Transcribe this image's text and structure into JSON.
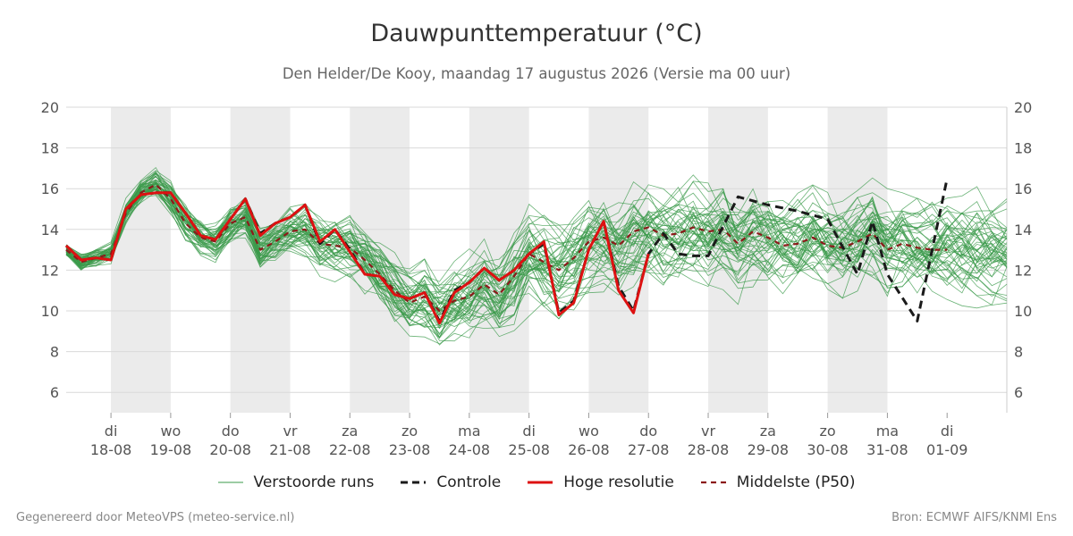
{
  "chart_data": {
    "type": "line",
    "title": "Dauwpunttemperatuur (°C)",
    "subtitle": "Den Helder/De Kooy, maandag 17 augustus 2026 (Versie ma 00 uur)",
    "ylim": [
      5,
      20
    ],
    "yticks": [
      6,
      8,
      10,
      12,
      14,
      16,
      18,
      20
    ],
    "xlim": [
      -0.75,
      15
    ],
    "day_ticks": [
      {
        "x": 0,
        "day": "di",
        "date": "18-08"
      },
      {
        "x": 1,
        "day": "wo",
        "date": "19-08"
      },
      {
        "x": 2,
        "day": "do",
        "date": "20-08"
      },
      {
        "x": 3,
        "day": "vr",
        "date": "21-08"
      },
      {
        "x": 4,
        "day": "za",
        "date": "22-08"
      },
      {
        "x": 5,
        "day": "zo",
        "date": "23-08"
      },
      {
        "x": 6,
        "day": "ma",
        "date": "24-08"
      },
      {
        "x": 7,
        "day": "di",
        "date": "25-08"
      },
      {
        "x": 8,
        "day": "wo",
        "date": "26-08"
      },
      {
        "x": 9,
        "day": "do",
        "date": "27-08"
      },
      {
        "x": 10,
        "day": "vr",
        "date": "28-08"
      },
      {
        "x": 11,
        "day": "za",
        "date": "29-08"
      },
      {
        "x": 12,
        "day": "zo",
        "date": "30-08"
      },
      {
        "x": 13,
        "day": "ma",
        "date": "31-08"
      },
      {
        "x": 14,
        "day": "di",
        "date": "01-09"
      }
    ],
    "shaded_days": [
      0,
      2,
      4,
      6,
      8,
      10,
      12
    ],
    "grid": true,
    "legend_position": "bottom",
    "series": [
      {
        "name": "Controle",
        "color": "#1a1a1a",
        "style": "dashed",
        "x": [
          -0.75,
          -0.5,
          -0.25,
          0,
          0.25,
          0.5,
          0.75,
          1,
          1.25,
          1.5,
          1.75,
          2,
          2.25,
          2.5,
          2.75,
          3,
          3.25,
          3.5,
          3.75,
          4,
          4.25,
          4.5,
          4.75,
          5,
          5.25,
          5.5,
          5.75,
          6,
          6.25,
          6.5,
          6.75,
          7,
          7.25,
          7.5,
          7.75,
          8,
          8.25,
          8.5,
          8.75,
          9,
          9.25,
          9.5,
          9.75,
          10,
          10.5,
          11,
          11.5,
          12,
          12.5,
          12.75,
          13,
          13.5,
          14
        ],
        "y": [
          13.2,
          12.5,
          12.6,
          12.5,
          15.0,
          15.7,
          15.8,
          15.8,
          14.8,
          13.7,
          13.5,
          14.5,
          15.5,
          13.8,
          14.3,
          14.6,
          15.2,
          13.3,
          14.0,
          13.0,
          11.8,
          11.7,
          10.8,
          10.6,
          10.9,
          9.5,
          11.0,
          11.4,
          12.1,
          11.5,
          12.0,
          12.8,
          13.3,
          9.9,
          10.5,
          13.0,
          14.4,
          11.2,
          10.0,
          12.8,
          13.8,
          12.8,
          12.7,
          12.7,
          15.6,
          15.2,
          14.9,
          14.5,
          11.8,
          14.4,
          11.8,
          9.5,
          16.5
        ]
      },
      {
        "name": "Hoge resolutie",
        "color": "#dd1111",
        "style": "solid",
        "x": [
          -0.75,
          -0.5,
          -0.25,
          0,
          0.25,
          0.5,
          0.75,
          1,
          1.25,
          1.5,
          1.75,
          2,
          2.25,
          2.5,
          2.75,
          3,
          3.25,
          3.5,
          3.75,
          4,
          4.25,
          4.5,
          4.75,
          5,
          5.25,
          5.5,
          5.75,
          6,
          6.25,
          6.5,
          6.75,
          7,
          7.25,
          7.5,
          7.75,
          8,
          8.25,
          8.5,
          8.75,
          9
        ],
        "y": [
          13.2,
          12.5,
          12.6,
          12.5,
          15.0,
          15.7,
          15.8,
          15.8,
          14.8,
          13.7,
          13.5,
          14.5,
          15.5,
          13.7,
          14.3,
          14.6,
          15.2,
          13.4,
          14.0,
          12.9,
          11.8,
          11.7,
          10.8,
          10.6,
          10.9,
          9.4,
          10.9,
          11.4,
          12.1,
          11.5,
          12.0,
          12.8,
          13.4,
          9.8,
          10.4,
          13.0,
          14.4,
          11.0,
          9.9,
          12.8
        ]
      },
      {
        "name": "Middelste (P50)",
        "color": "#8b1a1a",
        "style": "dashed",
        "x": [
          -0.75,
          -0.5,
          -0.25,
          0,
          0.25,
          0.5,
          0.75,
          1,
          1.25,
          1.5,
          1.75,
          2,
          2.25,
          2.5,
          2.75,
          3,
          3.25,
          3.5,
          3.75,
          4,
          4.25,
          4.5,
          4.75,
          5,
          5.25,
          5.5,
          5.75,
          6,
          6.25,
          6.5,
          6.75,
          7,
          7.25,
          7.5,
          7.75,
          8,
          8.25,
          8.5,
          8.75,
          9,
          9.25,
          9.5,
          9.75,
          10,
          10.25,
          10.5,
          10.75,
          11,
          11.25,
          11.5,
          11.75,
          12,
          12.25,
          12.5,
          12.75,
          13,
          13.25,
          13.5,
          13.75,
          14
        ],
        "y": [
          13.0,
          12.4,
          12.6,
          12.8,
          14.8,
          15.8,
          16.2,
          15.5,
          14.3,
          13.6,
          13.4,
          14.3,
          14.6,
          13.0,
          13.4,
          13.9,
          14.0,
          13.3,
          13.2,
          13.1,
          12.5,
          11.8,
          11.0,
          10.4,
          10.7,
          10.0,
          10.5,
          10.7,
          11.3,
          10.8,
          11.7,
          12.8,
          12.4,
          12.0,
          12.6,
          13.4,
          13.6,
          13.2,
          13.9,
          14.1,
          13.7,
          13.8,
          14.1,
          13.9,
          14.0,
          13.3,
          13.9,
          13.6,
          13.2,
          13.3,
          13.6,
          13.2,
          13.1,
          13.4,
          13.8,
          13.0,
          13.3,
          13.1,
          13.0,
          13.0
        ]
      },
      {
        "name": "Verstoorde runs",
        "color": "#3a9a4a",
        "style": "thin",
        "count": 50
      }
    ],
    "legend": [
      "Verstoorde runs",
      "Controle",
      "Hoge resolutie",
      "Middelste (P50)"
    ]
  },
  "footer": {
    "left": "Gegenereerd door MeteoVPS (meteo-service.nl)",
    "right": "Bron: ECMWF AIFS/KNMI Ens"
  },
  "colors": {
    "shade": "#ebebeb",
    "grid": "#d9d9d9"
  }
}
